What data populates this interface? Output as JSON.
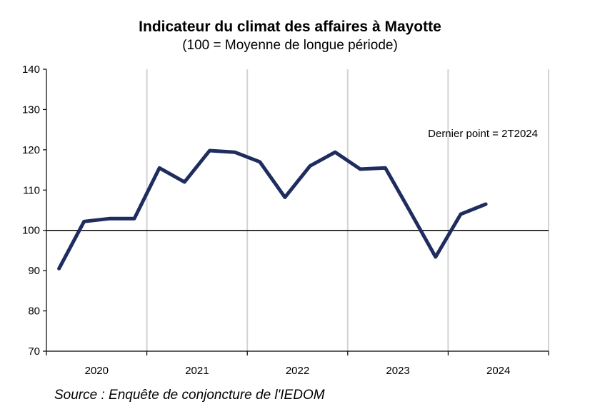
{
  "chart_data": {
    "type": "line",
    "title": "Indicateur du climat des affaires à Mayotte",
    "subtitle": "(100 = Moyenne de longue période)",
    "annotation": "Dernier point  = 2T2024",
    "source": "Source : Enquête de conjoncture de l'IEDOM",
    "ylim": [
      70,
      140
    ],
    "yticks": [
      70,
      80,
      90,
      100,
      110,
      120,
      130,
      140
    ],
    "year_labels": [
      "2020",
      "2021",
      "2022",
      "2023",
      "2024"
    ],
    "reference_line": 100,
    "grid": "vertical, at year boundaries",
    "line_color": "#1f2d5e",
    "series": [
      {
        "x": [
          "1T2020",
          "2T2020",
          "3T2020",
          "4T2020",
          "1T2021",
          "2T2021",
          "3T2021",
          "4T2021",
          "1T2022",
          "2T2022",
          "3T2022",
          "4T2022",
          "1T2023",
          "2T2023",
          "3T2023",
          "4T2023",
          "1T2024",
          "2T2024"
        ],
        "values": [
          90.5,
          102.2,
          102.9,
          102.9,
          115.5,
          112.0,
          119.8,
          119.4,
          117.0,
          108.2,
          116.0,
          119.4,
          115.2,
          115.5,
          104.5,
          93.4,
          104.0,
          106.5
        ]
      }
    ]
  }
}
